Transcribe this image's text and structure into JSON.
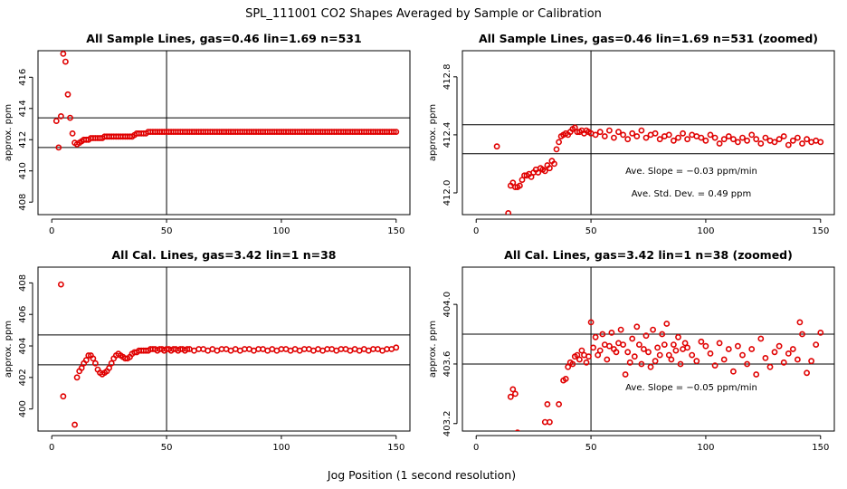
{
  "title": "SPL_111001  CO2 Shapes Averaged by Sample or Calibration",
  "xlabel": "Jog Position (1 second resolution)",
  "chart_data": [
    {
      "type": "scatter",
      "title": "All Sample Lines, gas=0.46 lin=1.69 n=531",
      "ylabel": "approx. ppm",
      "xlim": [
        -6,
        156
      ],
      "ylim": [
        407.2,
        417.7
      ],
      "xticks": [
        0,
        50,
        100,
        150
      ],
      "yticks": [
        408,
        410,
        412,
        414,
        416
      ],
      "vline": 50,
      "hlines": [
        411.5,
        413.4
      ],
      "annotations": [],
      "series": [
        {
          "x": [
            2,
            3,
            4,
            5,
            6,
            7,
            8,
            9,
            10,
            11,
            12,
            13,
            14,
            15,
            16,
            17,
            18,
            19,
            20,
            21,
            22,
            23,
            24,
            25,
            26,
            27,
            28,
            29,
            30,
            31,
            32,
            33,
            34,
            35,
            36,
            37,
            38,
            39,
            40,
            41,
            42,
            43,
            44,
            45,
            46,
            47,
            48,
            49,
            50,
            51,
            52,
            53,
            54,
            55,
            56,
            57,
            58,
            59,
            60,
            61,
            62,
            63,
            64,
            65,
            66,
            67,
            68,
            69,
            70,
            71,
            72,
            73,
            74,
            75,
            76,
            77,
            78,
            79,
            80,
            81,
            82,
            83,
            84,
            85,
            86,
            87,
            88,
            89,
            90,
            91,
            92,
            93,
            94,
            95,
            96,
            97,
            98,
            99,
            100,
            101,
            102,
            103,
            104,
            105,
            106,
            107,
            108,
            109,
            110,
            111,
            112,
            113,
            114,
            115,
            116,
            117,
            118,
            119,
            120,
            121,
            122,
            123,
            124,
            125,
            126,
            127,
            128,
            129,
            130,
            131,
            132,
            133,
            134,
            135,
            136,
            137,
            138,
            139,
            140,
            141,
            142,
            143,
            144,
            145,
            146,
            147,
            148,
            149,
            150
          ],
          "y": [
            413.2,
            411.5,
            413.5,
            417.5,
            417.0,
            414.9,
            413.4,
            412.4,
            411.8,
            411.7,
            411.8,
            411.9,
            412.0,
            412.0,
            412.0,
            412.1,
            412.1,
            412.1,
            412.1,
            412.1,
            412.1,
            412.2,
            412.2,
            412.2,
            412.2,
            412.2,
            412.2,
            412.2,
            412.2,
            412.2,
            412.2,
            412.2,
            412.2,
            412.2,
            412.3,
            412.4,
            412.4,
            412.4,
            412.4,
            412.4,
            412.5,
            412.5,
            412.5,
            412.5,
            412.5,
            412.5,
            412.5,
            412.5,
            412.5,
            412.5,
            412.5,
            412.5,
            412.5,
            412.5,
            412.5,
            412.5,
            412.5,
            412.5,
            412.5,
            412.5,
            412.5,
            412.5,
            412.5,
            412.5,
            412.5,
            412.5,
            412.5,
            412.5,
            412.5,
            412.5,
            412.5,
            412.5,
            412.5,
            412.5,
            412.5,
            412.5,
            412.5,
            412.5,
            412.5,
            412.5,
            412.5,
            412.5,
            412.5,
            412.5,
            412.5,
            412.5,
            412.5,
            412.5,
            412.5,
            412.5,
            412.5,
            412.5,
            412.5,
            412.5,
            412.5,
            412.5,
            412.5,
            412.5,
            412.5,
            412.5,
            412.5,
            412.5,
            412.5,
            412.5,
            412.5,
            412.5,
            412.5,
            412.5,
            412.5,
            412.5,
            412.5,
            412.5,
            412.5,
            412.5,
            412.5,
            412.5,
            412.5,
            412.5,
            412.5,
            412.5,
            412.5,
            412.5,
            412.5,
            412.5,
            412.5,
            412.5,
            412.5,
            412.5,
            412.5,
            412.5,
            412.5,
            412.5,
            412.5,
            412.5,
            412.5,
            412.5,
            412.5,
            412.5,
            412.5,
            412.5,
            412.5,
            412.5,
            412.5,
            412.5,
            412.5,
            412.5,
            412.5,
            412.5,
            412.5
          ]
        }
      ]
    },
    {
      "type": "scatter",
      "title": "All Sample Lines, gas=0.46 lin=1.69 n=531 (zoomed)",
      "ylabel": "approx. ppm",
      "xlim": [
        -6,
        156
      ],
      "ylim": [
        411.85,
        412.98
      ],
      "xticks": [
        0,
        50,
        100,
        150
      ],
      "yticks": [
        412.0,
        412.4,
        412.8
      ],
      "ytick_labels": [
        "412.0",
        "412.4",
        "412.8"
      ],
      "vline": 50,
      "hlines": [
        412.47,
        412.27
      ],
      "annotations": [
        "Ave. Slope =  −0.03  ppm/min",
        "Ave. Std. Dev. =  0.49  ppm"
      ],
      "series": [
        {
          "x": [
            9,
            14,
            15,
            16,
            17,
            18,
            19,
            20,
            21,
            22,
            23,
            24,
            25,
            26,
            27,
            28,
            29,
            30,
            31,
            32,
            33,
            34,
            35,
            36,
            37,
            38,
            39,
            40,
            41,
            42,
            43,
            44,
            45,
            46,
            47,
            48,
            49,
            50,
            52,
            54,
            56,
            58,
            60,
            62,
            64,
            66,
            68,
            70,
            72,
            74,
            76,
            78,
            80,
            82,
            84,
            86,
            88,
            90,
            92,
            94,
            96,
            98,
            100,
            102,
            104,
            106,
            108,
            110,
            112,
            114,
            116,
            118,
            120,
            122,
            124,
            126,
            128,
            130,
            132,
            134,
            136,
            138,
            140,
            142,
            144,
            146,
            148,
            150
          ],
          "y": [
            412.32,
            411.86,
            412.05,
            412.07,
            412.04,
            412.04,
            412.05,
            412.09,
            412.12,
            412.12,
            412.13,
            412.11,
            412.14,
            412.16,
            412.14,
            412.17,
            412.16,
            412.15,
            412.19,
            412.17,
            412.22,
            412.2,
            412.3,
            412.35,
            412.39,
            412.4,
            412.41,
            412.4,
            412.42,
            412.44,
            412.45,
            412.42,
            412.42,
            412.43,
            412.41,
            412.43,
            412.42,
            412.41,
            412.4,
            412.42,
            412.39,
            412.43,
            412.38,
            412.42,
            412.4,
            412.37,
            412.41,
            412.39,
            412.43,
            412.38,
            412.4,
            412.41,
            412.37,
            412.39,
            412.4,
            412.36,
            412.38,
            412.41,
            412.37,
            412.4,
            412.39,
            412.38,
            412.36,
            412.4,
            412.38,
            412.34,
            412.37,
            412.39,
            412.37,
            412.35,
            412.38,
            412.36,
            412.4,
            412.37,
            412.34,
            412.38,
            412.36,
            412.35,
            412.37,
            412.39,
            412.33,
            412.36,
            412.38,
            412.34,
            412.37,
            412.35,
            412.36,
            412.35
          ]
        }
      ]
    },
    {
      "type": "scatter",
      "title": "All Cal. Lines, gas=3.42 lin=1 n=38",
      "ylabel": "approx. ppm",
      "xlim": [
        -6,
        156
      ],
      "ylim": [
        398.6,
        409.0
      ],
      "xticks": [
        0,
        50,
        100,
        150
      ],
      "yticks": [
        400,
        402,
        404,
        406,
        408
      ],
      "vline": 50,
      "hlines": [
        404.7,
        402.8
      ],
      "annotations": [],
      "series": [
        {
          "x": [
            4,
            5,
            10,
            11,
            12,
            13,
            14,
            15,
            16,
            17,
            18,
            19,
            20,
            21,
            22,
            23,
            24,
            25,
            26,
            27,
            28,
            29,
            30,
            31,
            32,
            33,
            34,
            35,
            36,
            37,
            38,
            39,
            40,
            41,
            42,
            43,
            44,
            45,
            46,
            47,
            48,
            49,
            50,
            51,
            52,
            53,
            54,
            55,
            56,
            57,
            58,
            59,
            60,
            62,
            64,
            66,
            68,
            70,
            72,
            74,
            76,
            78,
            80,
            82,
            84,
            86,
            88,
            90,
            92,
            94,
            96,
            98,
            100,
            102,
            104,
            106,
            108,
            110,
            112,
            114,
            116,
            118,
            120,
            122,
            124,
            126,
            128,
            130,
            132,
            134,
            136,
            138,
            140,
            142,
            144,
            146,
            148,
            150
          ],
          "y": [
            407.9,
            400.8,
            399.0,
            402.0,
            402.4,
            402.6,
            402.9,
            403.1,
            403.4,
            403.4,
            403.2,
            402.9,
            402.5,
            402.3,
            402.2,
            402.3,
            402.4,
            402.6,
            402.9,
            403.2,
            403.4,
            403.5,
            403.4,
            403.3,
            403.2,
            403.2,
            403.3,
            403.5,
            403.6,
            403.6,
            403.7,
            403.7,
            403.7,
            403.7,
            403.7,
            403.8,
            403.8,
            403.8,
            403.7,
            403.8,
            403.8,
            403.7,
            403.8,
            403.8,
            403.7,
            403.8,
            403.8,
            403.7,
            403.8,
            403.8,
            403.7,
            403.8,
            403.8,
            403.7,
            403.8,
            403.8,
            403.7,
            403.8,
            403.7,
            403.8,
            403.8,
            403.7,
            403.8,
            403.7,
            403.8,
            403.8,
            403.7,
            403.8,
            403.8,
            403.7,
            403.8,
            403.7,
            403.8,
            403.8,
            403.7,
            403.8,
            403.7,
            403.8,
            403.8,
            403.7,
            403.8,
            403.7,
            403.8,
            403.8,
            403.7,
            403.8,
            403.8,
            403.7,
            403.8,
            403.7,
            403.8,
            403.7,
            403.8,
            403.8,
            403.7,
            403.8,
            403.8,
            403.9
          ]
        }
      ]
    },
    {
      "type": "scatter",
      "title": "All Cal. Lines, gas=3.42 lin=1 n=38 (zoomed)",
      "ylabel": "approx. ppm",
      "xlim": [
        -6,
        156
      ],
      "ylim": [
        403.15,
        404.25
      ],
      "xticks": [
        0,
        50,
        100,
        150
      ],
      "yticks": [
        403.2,
        403.6,
        404.0
      ],
      "ytick_labels": [
        "403.2",
        "403.6",
        "404.0"
      ],
      "vline": 50,
      "hlines": [
        403.8,
        403.6
      ],
      "annotations": [
        "Ave. Slope =  −0.05  ppm/min"
      ],
      "series": [
        {
          "x": [
            15,
            16,
            17,
            18,
            30,
            31,
            32,
            36,
            38,
            39,
            40,
            41,
            42,
            43,
            44,
            45,
            46,
            47,
            48,
            49,
            50,
            51,
            52,
            53,
            54,
            55,
            56,
            57,
            58,
            59,
            60,
            61,
            62,
            63,
            64,
            65,
            66,
            67,
            68,
            69,
            70,
            71,
            72,
            73,
            74,
            75,
            76,
            77,
            78,
            79,
            80,
            81,
            82,
            83,
            84,
            85,
            86,
            87,
            88,
            89,
            90,
            91,
            92,
            94,
            96,
            98,
            100,
            102,
            104,
            106,
            108,
            110,
            112,
            114,
            116,
            118,
            120,
            122,
            124,
            126,
            128,
            130,
            132,
            134,
            136,
            138,
            140,
            141,
            142,
            144,
            146,
            148,
            150
          ],
          "y": [
            403.38,
            403.43,
            403.4,
            403.14,
            403.21,
            403.33,
            403.21,
            403.33,
            403.49,
            403.5,
            403.58,
            403.61,
            403.6,
            403.65,
            403.66,
            403.63,
            403.69,
            403.66,
            403.61,
            403.65,
            403.88,
            403.71,
            403.78,
            403.66,
            403.69,
            403.8,
            403.73,
            403.63,
            403.72,
            403.81,
            403.7,
            403.68,
            403.74,
            403.83,
            403.73,
            403.53,
            403.68,
            403.61,
            403.77,
            403.65,
            403.85,
            403.73,
            403.6,
            403.7,
            403.79,
            403.68,
            403.58,
            403.83,
            403.62,
            403.71,
            403.66,
            403.8,
            403.73,
            403.87,
            403.66,
            403.63,
            403.73,
            403.69,
            403.78,
            403.6,
            403.7,
            403.74,
            403.71,
            403.66,
            403.62,
            403.75,
            403.72,
            403.67,
            403.59,
            403.74,
            403.63,
            403.7,
            403.55,
            403.72,
            403.66,
            403.6,
            403.7,
            403.53,
            403.77,
            403.64,
            403.58,
            403.68,
            403.72,
            403.61,
            403.67,
            403.7,
            403.63,
            403.88,
            403.8,
            403.54,
            403.62,
            403.73,
            403.81
          ]
        }
      ]
    }
  ]
}
